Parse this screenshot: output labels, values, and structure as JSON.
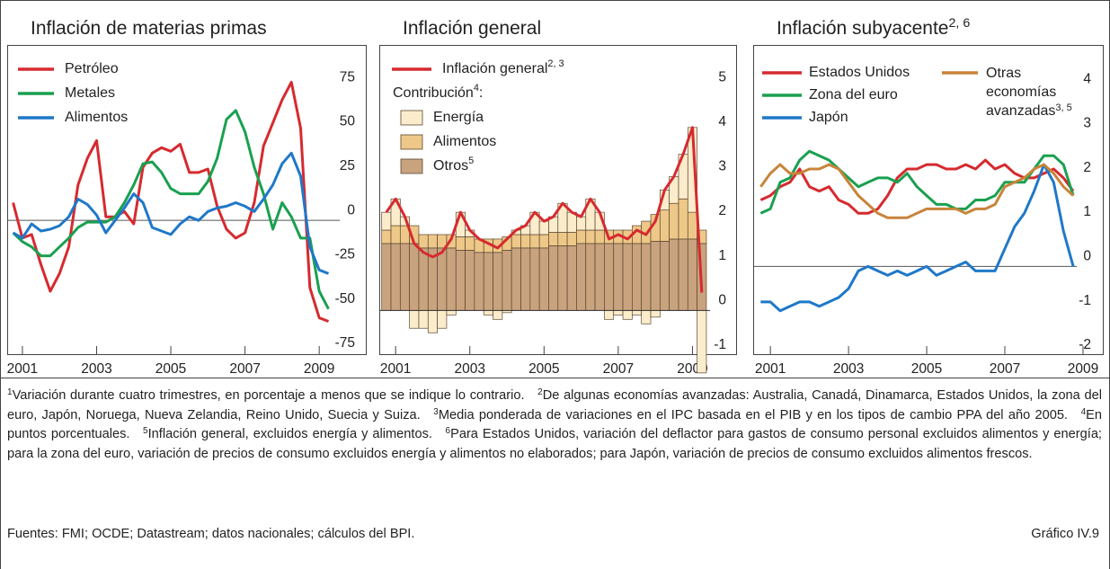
{
  "chart_data": [
    {
      "type": "line",
      "title": "Inflación de materias primas",
      "x": [
        2000.75,
        2001,
        2001.25,
        2001.5,
        2001.75,
        2002,
        2002.25,
        2002.5,
        2002.75,
        2003,
        2003.25,
        2003.5,
        2003.75,
        2004,
        2004.25,
        2004.5,
        2004.75,
        2005,
        2005.25,
        2005.5,
        2005.75,
        2006,
        2006.25,
        2006.5,
        2006.75,
        2007,
        2007.25,
        2007.5,
        2007.75,
        2008,
        2008.25,
        2008.5,
        2008.75,
        2009,
        2009.25
      ],
      "xlim": [
        2000.59,
        2010.28
      ],
      "xticks": [
        2001,
        2003,
        2005,
        2007,
        2009
      ],
      "ylim": [
        -76,
        99
      ],
      "yticks": [
        -75,
        -50,
        -25,
        0,
        25,
        50,
        75
      ],
      "series": [
        {
          "name": "Petróleo",
          "color": "#d62a2f",
          "values": [
            10,
            -10,
            -8,
            -25,
            -40,
            -30,
            -15,
            20,
            35,
            45,
            2,
            2,
            5,
            -2,
            30,
            38,
            41,
            39,
            43,
            27,
            27,
            29,
            8,
            -5,
            -10,
            -7,
            10,
            42,
            55,
            68,
            78,
            52,
            -38,
            -55,
            -57
          ]
        },
        {
          "name": "Metales",
          "color": "#1aa050",
          "values": [
            -7,
            -12,
            -15,
            -20,
            -20,
            -15,
            -10,
            -4,
            -1,
            -1,
            -1,
            2,
            10,
            20,
            32,
            33,
            27,
            18,
            15,
            15,
            15,
            22,
            35,
            57,
            62,
            50,
            30,
            15,
            -5,
            10,
            2,
            -10,
            -10,
            -40,
            -50
          ]
        },
        {
          "name": "Alimentos",
          "color": "#1f78c8",
          "values": [
            -7,
            -10,
            -2,
            -6,
            -5,
            -3,
            2,
            12,
            9,
            3,
            -7,
            0,
            7,
            15,
            10,
            -4,
            -6,
            -8,
            -2,
            2,
            0,
            5,
            7,
            8,
            10,
            8,
            5,
            12,
            20,
            32,
            38,
            25,
            -15,
            -28,
            -30
          ]
        }
      ]
    },
    {
      "type": "combo",
      "title": "Inflación general",
      "contribution_label": {
        "text": "Contribución",
        "sup": "4",
        "tail": ":"
      },
      "x": [
        2000.75,
        2001,
        2001.25,
        2001.5,
        2001.75,
        2002,
        2002.25,
        2002.5,
        2002.75,
        2003,
        2003.25,
        2003.5,
        2003.75,
        2004,
        2004.25,
        2004.5,
        2004.75,
        2005,
        2005.25,
        2005.5,
        2005.75,
        2006,
        2006.25,
        2006.5,
        2006.75,
        2007,
        2007.25,
        2007.5,
        2007.75,
        2008,
        2008.25,
        2008.5,
        2008.75,
        2009,
        2009.25
      ],
      "xlim": [
        2000.56,
        2010.2
      ],
      "xticks": [
        2001,
        2003,
        2005,
        2007,
        2009
      ],
      "ylim": [
        -1.0,
        5.95
      ],
      "yticks": [
        -1,
        0,
        1,
        2,
        3,
        4,
        5
      ],
      "series": [
        {
          "name": "Inflación general",
          "sup": "2, 3",
          "kind": "line",
          "color": "#d62a2f",
          "values": [
            2.2,
            2.5,
            2.1,
            1.5,
            1.3,
            1.2,
            1.3,
            1.6,
            2.2,
            1.8,
            1.6,
            1.5,
            1.4,
            1.6,
            1.8,
            1.9,
            2.2,
            2.0,
            2.1,
            2.4,
            2.2,
            2.1,
            2.5,
            2.2,
            1.6,
            1.7,
            1.6,
            1.8,
            1.7,
            2.0,
            2.7,
            3.0,
            3.5,
            4.1,
            0.4
          ]
        },
        {
          "name": "Energía",
          "kind": "bar",
          "color": "#fbeccb",
          "values": [
            0.4,
            0.6,
            0.2,
            -0.4,
            -0.4,
            -0.5,
            -0.4,
            -0.1,
            0.55,
            0.15,
            0,
            -0.1,
            -0.2,
            -0.05,
            0.1,
            0.2,
            0.5,
            0.3,
            0.35,
            0.65,
            0.45,
            0.3,
            0.7,
            0.4,
            -0.2,
            -0.1,
            -0.2,
            -0.1,
            -0.3,
            -0.15,
            0.45,
            0.6,
            1.0,
            1.9,
            -1.4
          ]
        },
        {
          "name": "Alimentos",
          "kind": "bar",
          "color": "#eec888",
          "values": [
            0.3,
            0.4,
            0.4,
            0.4,
            0.3,
            0.3,
            0.3,
            0.3,
            0.3,
            0.3,
            0.3,
            0.3,
            0.3,
            0.3,
            0.3,
            0.3,
            0.3,
            0.3,
            0.3,
            0.3,
            0.3,
            0.3,
            0.3,
            0.3,
            0.3,
            0.3,
            0.3,
            0.4,
            0.5,
            0.6,
            0.7,
            0.8,
            0.9,
            0.6,
            0.3
          ]
        },
        {
          "name": "Otros",
          "sup": "5",
          "kind": "bar",
          "color": "#c9a37e",
          "values": [
            1.5,
            1.5,
            1.5,
            1.5,
            1.4,
            1.4,
            1.4,
            1.4,
            1.35,
            1.35,
            1.3,
            1.3,
            1.3,
            1.35,
            1.4,
            1.4,
            1.4,
            1.4,
            1.45,
            1.45,
            1.45,
            1.5,
            1.5,
            1.5,
            1.5,
            1.5,
            1.5,
            1.5,
            1.5,
            1.55,
            1.55,
            1.6,
            1.6,
            1.6,
            1.5
          ]
        }
      ]
    },
    {
      "type": "line",
      "title": "Inflación subyacente",
      "title_sup": "2, 6",
      "x": [
        2000.75,
        2001,
        2001.25,
        2001.5,
        2001.75,
        2002,
        2002.25,
        2002.5,
        2002.75,
        2003,
        2003.25,
        2003.5,
        2003.75,
        2004,
        2004.25,
        2004.5,
        2004.75,
        2005,
        2005.25,
        2005.5,
        2005.75,
        2006,
        2006.25,
        2006.5,
        2006.75,
        2007,
        2007.25,
        2007.5,
        2007.75,
        2008,
        2008.25,
        2008.5,
        2008.75
      ],
      "xlim": [
        2000.56,
        2009.53
      ],
      "xticks": [
        2001,
        2003,
        2005,
        2007,
        2009
      ],
      "ylim": [
        -2.0,
        5.0
      ],
      "yticks": [
        -2,
        -1,
        0,
        1,
        2,
        3,
        4
      ],
      "series": [
        {
          "name": "Estados Unidos",
          "color": "#d62a2f",
          "values": [
            1.5,
            1.6,
            1.8,
            1.9,
            2.2,
            1.8,
            1.7,
            1.8,
            1.5,
            1.4,
            1.2,
            1.2,
            1.3,
            1.6,
            2.0,
            2.2,
            2.2,
            2.3,
            2.3,
            2.2,
            2.2,
            2.3,
            2.2,
            2.4,
            2.2,
            2.3,
            2.1,
            2.0,
            2.0,
            2.1,
            2.2,
            2.0,
            1.7
          ]
        },
        {
          "name": "Zona del euro",
          "color": "#1aa050",
          "values": [
            1.2,
            1.3,
            1.9,
            2.0,
            2.4,
            2.6,
            2.5,
            2.4,
            2.2,
            2.0,
            1.8,
            1.9,
            2.0,
            2.0,
            1.9,
            2.1,
            1.8,
            1.6,
            1.4,
            1.4,
            1.3,
            1.3,
            1.5,
            1.5,
            1.6,
            1.9,
            1.9,
            1.9,
            2.2,
            2.5,
            2.5,
            2.3,
            1.6
          ]
        },
        {
          "name": "Japón",
          "color": "#1f78c8",
          "values": [
            -0.8,
            -0.8,
            -1.0,
            -0.9,
            -0.8,
            -0.8,
            -0.9,
            -0.8,
            -0.7,
            -0.5,
            -0.1,
            0.0,
            -0.1,
            -0.2,
            -0.1,
            -0.2,
            -0.1,
            0.0,
            -0.2,
            -0.1,
            0.0,
            0.1,
            -0.1,
            -0.1,
            -0.1,
            0.4,
            0.9,
            1.2,
            1.7,
            2.3,
            1.9,
            0.8,
            0.0
          ]
        },
        {
          "name": "Otras economías avanzadas",
          "sup": "3, 5",
          "color": "#c8843a",
          "values": [
            1.8,
            2.1,
            2.3,
            2.1,
            2.1,
            2.2,
            2.2,
            2.3,
            2.2,
            1.9,
            1.6,
            1.4,
            1.2,
            1.1,
            1.1,
            1.1,
            1.2,
            1.3,
            1.3,
            1.3,
            1.3,
            1.2,
            1.3,
            1.3,
            1.4,
            1.8,
            1.9,
            2.0,
            2.2,
            2.3,
            2.1,
            1.8,
            1.6
          ]
        }
      ]
    }
  ],
  "footnotes": [
    {
      "num": "1",
      "text": "Variación durante cuatro trimestres, en porcentaje a menos que se indique lo contrario."
    },
    {
      "num": "2",
      "text": "De algunas economías avanzadas: Australia, Canadá, Dinamarca, Estados Unidos, la zona del euro, Japón, Noruega, Nueva Zelandia, Reino Unido, Suecia y Suiza."
    },
    {
      "num": "3",
      "text": "Media ponderada de variaciones en el IPC basada en el PIB y en los tipos de cambio PPA del año 2005."
    },
    {
      "num": "4",
      "text": "En puntos porcentuales."
    },
    {
      "num": "5",
      "text": "Inflación general, excluidos energía y alimentos."
    },
    {
      "num": "6",
      "text": "Para Estados Unidos, variación del deflactor para gastos de consumo personal excluidos alimentos y energía; para la zona del euro, variación de precios de consumo excluidos energía y alimentos no elaborados; para Japón, variación de precios de consumo excluidos alimentos frescos."
    }
  ],
  "sources": "Fuentes: FMI; OCDE; Datastream; datos nacionales; cálculos del BPI.",
  "chart_id": "Gráfico IV.9"
}
